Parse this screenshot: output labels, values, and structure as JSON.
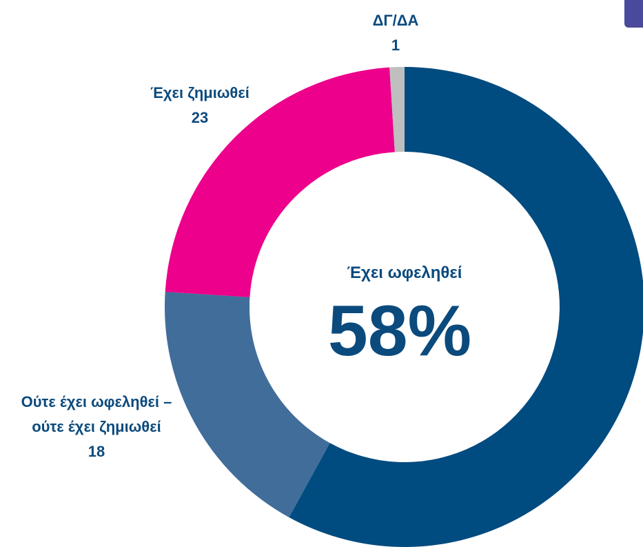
{
  "chart_data": {
    "type": "donut",
    "categories": [
      "Έχει ωφεληθεί",
      "Ούτε έχει ωφεληθεί – ούτε έχει ζημιωθεί",
      "Έχει ζημιωθεί",
      "ΔΓ/ΔΑ"
    ],
    "values": [
      58,
      18,
      23,
      1
    ],
    "value_labels": [
      "58%",
      null,
      null,
      null
    ],
    "colors": [
      "#004b7f",
      "#416d9a",
      "#ec008c",
      "#bfbfbf"
    ]
  }
}
